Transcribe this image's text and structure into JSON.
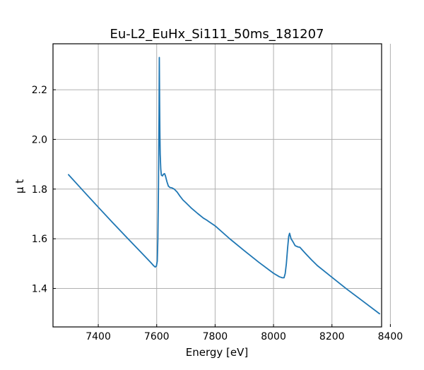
{
  "chart_data": {
    "type": "line",
    "title": "Eu-L2_EuHx_Si111_50ms_181207",
    "xlabel": "Energy [eV]",
    "ylabel": "μ t",
    "xlim": [
      7245,
      8370
    ],
    "ylim": [
      1.245,
      2.385
    ],
    "xticks": [
      7400,
      7600,
      7800,
      8000,
      8200,
      8400
    ],
    "yticks": [
      1.4,
      1.6,
      1.8,
      2.0,
      2.2
    ],
    "xtick_labels": [
      "7400",
      "7600",
      "7800",
      "8000",
      "8200",
      "8400"
    ],
    "ytick_labels": [
      "1.4",
      "1.6",
      "1.8",
      "2.0",
      "2.2"
    ],
    "grid": true,
    "color": "#1f77b4",
    "series": [
      {
        "x": [
          7298,
          7350,
          7400,
          7450,
          7500,
          7550,
          7580,
          7590,
          7595,
          7599,
          7602,
          7604,
          7606,
          7608,
          7609,
          7610,
          7611,
          7612,
          7614,
          7616,
          7620,
          7623,
          7627,
          7630,
          7635,
          7640,
          7646,
          7652,
          7660,
          7670,
          7680,
          7690,
          7700,
          7720,
          7740,
          7760,
          7770,
          7780,
          7800,
          7850,
          7900,
          7950,
          8000,
          8020,
          8030,
          8036,
          8040,
          8044,
          8048,
          8052,
          8055,
          8060,
          8066,
          8074,
          8084,
          8090,
          8096,
          8110,
          8130,
          8150,
          8200,
          8250,
          8300,
          8363
        ],
        "y": [
          1.858,
          1.791,
          1.727,
          1.664,
          1.602,
          1.541,
          1.504,
          1.491,
          1.486,
          1.49,
          1.51,
          1.6,
          1.8,
          2.1,
          2.33,
          2.15,
          2.02,
          1.94,
          1.88,
          1.856,
          1.853,
          1.86,
          1.862,
          1.853,
          1.83,
          1.812,
          1.806,
          1.805,
          1.8,
          1.788,
          1.771,
          1.756,
          1.745,
          1.722,
          1.702,
          1.683,
          1.676,
          1.668,
          1.652,
          1.6,
          1.552,
          1.505,
          1.461,
          1.447,
          1.443,
          1.443,
          1.46,
          1.5,
          1.56,
          1.61,
          1.622,
          1.6,
          1.589,
          1.572,
          1.567,
          1.566,
          1.558,
          1.54,
          1.515,
          1.492,
          1.445,
          1.398,
          1.354,
          1.298
        ]
      }
    ]
  }
}
